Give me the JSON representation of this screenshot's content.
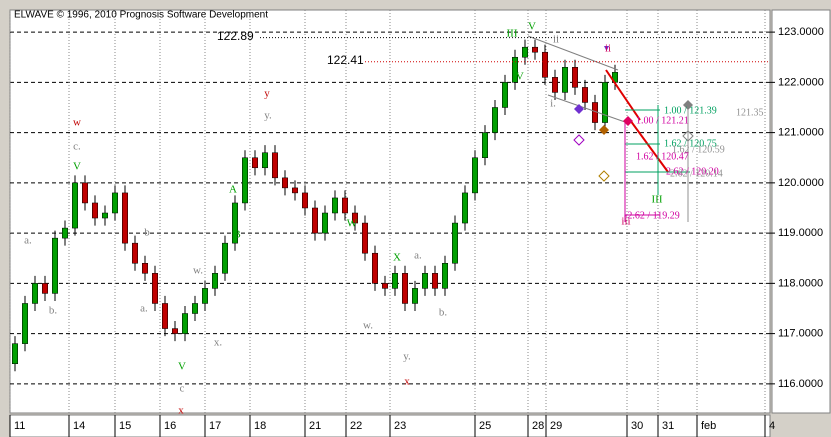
{
  "chart_data": {
    "type": "candlestick",
    "title": "ELWAVE © 1996, 2010 Prognosis Software Development",
    "x": [
      0.5,
      1.5,
      2.5,
      3.5,
      4.5,
      5.5,
      6.5,
      7.5,
      8.5,
      9.5,
      10.5,
      11.5,
      12.5,
      13.5,
      14.5,
      15.5,
      16.5,
      17.5,
      18.5,
      19.5,
      20.5,
      21.5,
      22.5,
      23.5,
      24.5,
      25.5,
      26.5,
      27.5,
      28.5,
      29.5,
      30.5,
      31.5,
      32.5,
      33.5,
      34.5,
      35.5,
      36.5,
      37.5,
      38.5,
      39.5,
      40.5,
      41.5,
      42.5,
      43.5,
      44.5,
      45.5,
      46.5,
      47.5,
      48.5,
      49.5,
      50.5,
      51.5,
      52.5,
      53.5,
      54.5,
      55.5,
      56.5,
      57.5,
      58.5,
      59.5,
      60.5
    ],
    "open": [
      116.4,
      116.8,
      117.6,
      118.0,
      117.8,
      118.9,
      119.1,
      120.0,
      119.6,
      119.3,
      119.4,
      119.8,
      118.8,
      118.4,
      118.2,
      117.6,
      117.1,
      117.0,
      117.4,
      117.6,
      117.9,
      118.2,
      118.8,
      119.6,
      120.5,
      120.3,
      120.6,
      120.1,
      119.9,
      119.8,
      119.5,
      119.0,
      119.4,
      119.7,
      119.4,
      119.2,
      118.6,
      118.0,
      117.9,
      118.2,
      117.6,
      117.9,
      118.2,
      117.9,
      118.4,
      119.2,
      119.8,
      120.5,
      121.0,
      121.5,
      122.0,
      122.5,
      122.7,
      122.6,
      122.1,
      121.8,
      122.3,
      121.9,
      121.6,
      121.2,
      122.0
    ],
    "high": [
      116.95,
      117.75,
      118.15,
      118.15,
      119.05,
      119.25,
      120.15,
      120.15,
      119.75,
      119.55,
      119.95,
      119.95,
      118.95,
      118.55,
      118.35,
      117.75,
      117.25,
      117.55,
      117.75,
      118.05,
      118.35,
      118.95,
      119.75,
      120.65,
      120.65,
      120.75,
      120.75,
      120.25,
      120.05,
      119.95,
      119.65,
      119.55,
      119.85,
      119.85,
      119.55,
      119.35,
      118.75,
      118.15,
      118.35,
      118.35,
      118.05,
      118.35,
      118.35,
      118.55,
      119.35,
      119.95,
      120.65,
      121.15,
      121.65,
      122.15,
      122.65,
      122.85,
      122.85,
      122.75,
      122.25,
      122.45,
      122.45,
      122.05,
      121.75,
      122.15,
      122.35
    ],
    "low": [
      116.25,
      116.65,
      117.45,
      117.65,
      117.65,
      118.75,
      118.95,
      119.45,
      119.15,
      119.15,
      119.25,
      118.65,
      118.25,
      118.05,
      117.45,
      116.95,
      116.85,
      116.85,
      117.25,
      117.45,
      117.75,
      118.05,
      118.65,
      119.45,
      120.15,
      120.15,
      119.95,
      119.75,
      119.65,
      119.35,
      118.85,
      118.85,
      119.25,
      119.25,
      119.05,
      118.45,
      117.85,
      117.75,
      117.75,
      117.45,
      117.45,
      117.75,
      117.75,
      117.75,
      118.25,
      119.05,
      119.65,
      120.35,
      120.85,
      121.35,
      121.85,
      122.35,
      122.45,
      121.95,
      121.65,
      121.65,
      121.75,
      121.45,
      121.05,
      121.05,
      121.85
    ],
    "close": [
      116.8,
      117.6,
      118.0,
      117.8,
      118.9,
      119.1,
      120.0,
      119.6,
      119.3,
      119.4,
      119.8,
      118.8,
      118.4,
      118.2,
      117.6,
      117.1,
      117.0,
      117.4,
      117.6,
      117.9,
      118.2,
      118.8,
      119.6,
      120.5,
      120.3,
      120.6,
      120.1,
      119.9,
      119.8,
      119.5,
      119.0,
      119.4,
      119.7,
      119.4,
      119.2,
      118.6,
      118.0,
      117.9,
      118.2,
      117.6,
      117.9,
      118.2,
      117.9,
      118.4,
      119.2,
      119.8,
      120.5,
      121.0,
      121.5,
      122.0,
      122.5,
      122.7,
      122.6,
      122.1,
      121.8,
      122.3,
      121.9,
      121.6,
      121.2,
      122.0,
      122.2
    ],
    "up_color": "#00a000",
    "down_color": "#c00000",
    "xlim": [
      0,
      76
    ],
    "xticks": [
      {
        "value": 0,
        "label": "11"
      },
      {
        "value": 5.9,
        "label": "14"
      },
      {
        "value": 10.5,
        "label": "15"
      },
      {
        "value": 15,
        "label": "16"
      },
      {
        "value": 19.5,
        "label": "17"
      },
      {
        "value": 24,
        "label": "18"
      },
      {
        "value": 29.5,
        "label": "21"
      },
      {
        "value": 33.6,
        "label": "22"
      },
      {
        "value": 38,
        "label": "23"
      },
      {
        "value": 46.5,
        "label": "25"
      },
      {
        "value": 51.8,
        "label": "28"
      },
      {
        "value": 53.6,
        "label": "29"
      },
      {
        "value": 61.7,
        "label": "30"
      },
      {
        "value": 64.8,
        "label": "31"
      },
      {
        "value": 68.7,
        "label": "feb"
      },
      {
        "value": 75.5,
        "label": "4"
      }
    ],
    "ylim": [
      115.42,
      123.44
    ],
    "yticks": [
      {
        "value": 116,
        "label": "116.0000"
      },
      {
        "value": 117,
        "label": "117.0000"
      },
      {
        "value": 118,
        "label": "118.0000"
      },
      {
        "value": 119,
        "label": "119.0000"
      },
      {
        "value": 120,
        "label": "120.0000"
      },
      {
        "value": 121,
        "label": "121.0000"
      },
      {
        "value": 122,
        "label": "122.0000"
      },
      {
        "value": 123,
        "label": "123.0000"
      }
    ],
    "grid": true,
    "hlines": [
      122.89,
      122.41
    ],
    "hline_colors": [
      "#000000",
      "#d00000"
    ],
    "annotations": [
      {
        "text": "w",
        "color": "#c00000"
      },
      {
        "text": "c.",
        "color": "#808080"
      },
      {
        "text": "V",
        "color": "#00a000"
      },
      {
        "text": "a.",
        "color": "#808080"
      },
      {
        "text": "b.",
        "color": "#808080"
      },
      {
        "text": "b",
        "color": "#808080"
      },
      {
        "text": "a.",
        "color": "#808080"
      },
      {
        "text": "w.",
        "color": "#808080"
      },
      {
        "text": "x.",
        "color": "#808080"
      },
      {
        "text": "V",
        "color": "#00a000"
      },
      {
        "text": "c",
        "color": "#808080"
      },
      {
        "text": "x",
        "color": "#c00000"
      },
      {
        "text": "y",
        "color": "#c00000"
      },
      {
        "text": "y.",
        "color": "#808080"
      },
      {
        "text": "A",
        "color": "#00a000"
      },
      {
        "text": "B",
        "color": "#00a000"
      },
      {
        "text": "W",
        "color": "#00a000"
      },
      {
        "text": "w.",
        "color": "#808080"
      },
      {
        "text": "X",
        "color": "#00a000"
      },
      {
        "text": "a.",
        "color": "#808080"
      },
      {
        "text": "y.",
        "color": "#808080"
      },
      {
        "text": "x",
        "color": "#c00000"
      },
      {
        "text": "b.",
        "color": "#808080"
      },
      {
        "text": "V",
        "color": "#00a000"
      },
      {
        "text": "III",
        "color": "#00a000"
      },
      {
        "text": "IV",
        "color": "#00a000"
      },
      {
        "text": "ii",
        "color": "#808080"
      },
      {
        "text": "i.",
        "color": "#808080"
      },
      {
        "text": "ii",
        "color": "#d00060"
      },
      {
        "text": "III",
        "color": "#00a000"
      },
      {
        "text": "iii",
        "color": "#d00060"
      },
      {
        "text": "1.00 / 121.21",
        "color": "#d000a0"
      },
      {
        "text": "1.62 / 120.47",
        "color": "#d000a0"
      },
      {
        "text": "2.62 / 120.20",
        "color": "#d000a0"
      },
      {
        "text": "-2.62 / 119.29",
        "color": "#d000a0"
      },
      {
        "text": "1.00 / 121.39",
        "color": "#00a060"
      },
      {
        "text": "1.62 / 120.75",
        "color": "#00a060"
      },
      {
        "text": "1.62 / 120.59",
        "color": "#909090"
      },
      {
        "text": "2.62 / 120.14",
        "color": "#909090"
      },
      {
        "text": "121.35",
        "color": "#909090"
      }
    ]
  }
}
